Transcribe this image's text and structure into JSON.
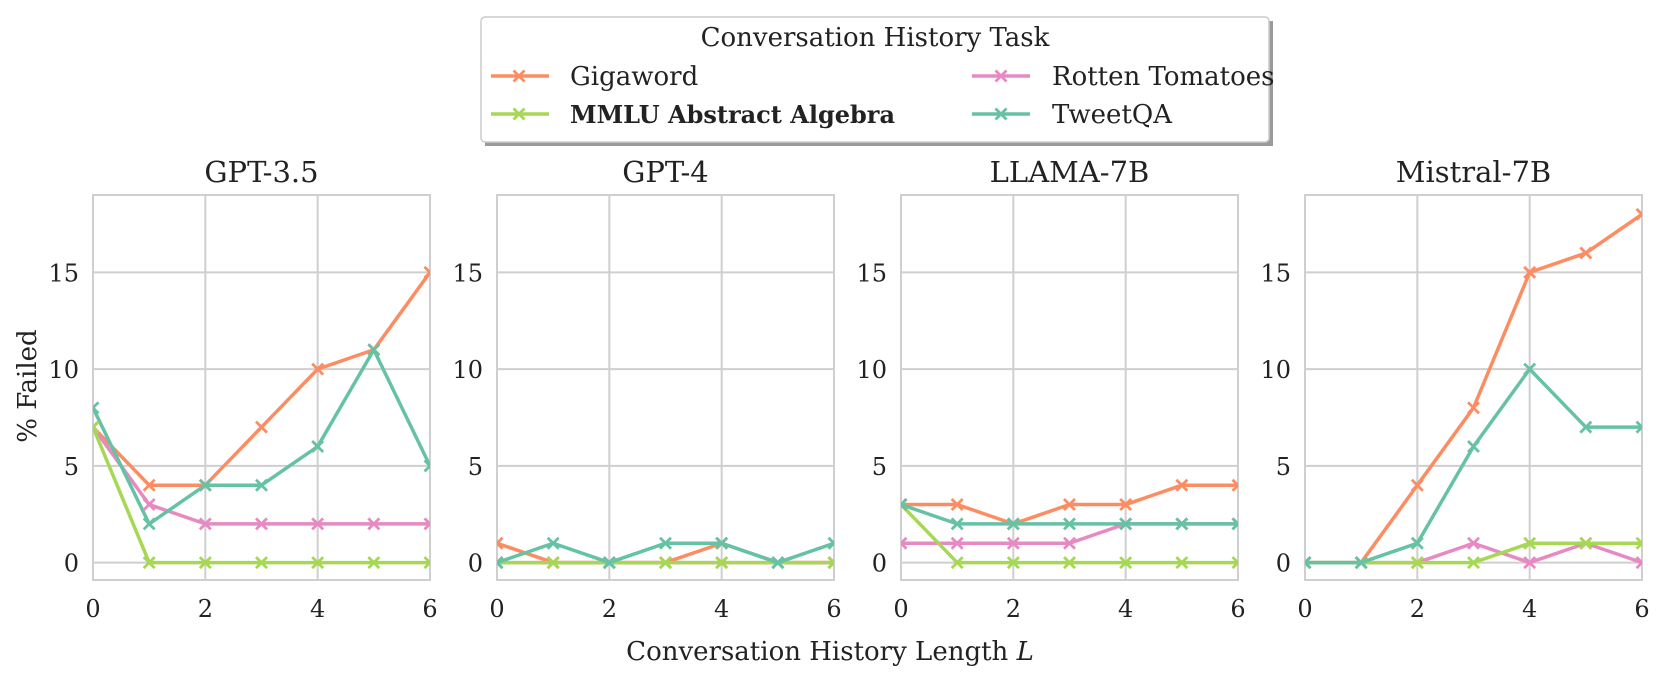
{
  "chart_data": {
    "type": "line",
    "legend": {
      "title": "Conversation History Task",
      "position": "top-center",
      "entries": [
        {
          "name": "Gigaword",
          "color": "#fc8d62",
          "bold": false
        },
        {
          "name": "Rotten Tomatoes",
          "color": "#e78ac3",
          "bold": false
        },
        {
          "name": "MMLU Abstract Algebra",
          "color": "#a6d854",
          "bold": true
        },
        {
          "name": "TweetQA",
          "color": "#66c2a5",
          "bold": false
        }
      ]
    },
    "xlabel_prefix": "Conversation History Length",
    "xlabel_var": "L",
    "ylabel": "% Failed",
    "x": [
      0,
      1,
      2,
      3,
      4,
      5,
      6
    ],
    "xlim": [
      0,
      6
    ],
    "ylim": [
      -0.9,
      19
    ],
    "xticks": [
      0,
      2,
      4,
      6
    ],
    "yticks": [
      0,
      5,
      10,
      15
    ],
    "grid": true,
    "panels": [
      {
        "title": "GPT-3.5",
        "series": [
          {
            "name": "Gigaword",
            "values": [
              7,
              4,
              4,
              7,
              10,
              11,
              15
            ]
          },
          {
            "name": "Rotten Tomatoes",
            "values": [
              7,
              3,
              2,
              2,
              2,
              2,
              2
            ]
          },
          {
            "name": "MMLU Abstract Algebra",
            "values": [
              7,
              0,
              0,
              0,
              0,
              0,
              0
            ]
          },
          {
            "name": "TweetQA",
            "values": [
              8,
              2,
              4,
              4,
              6,
              11,
              5
            ]
          }
        ]
      },
      {
        "title": "GPT-4",
        "series": [
          {
            "name": "Gigaword",
            "values": [
              1,
              0,
              0,
              0,
              1,
              0,
              0
            ]
          },
          {
            "name": "Rotten Tomatoes",
            "values": [
              0,
              0,
              0,
              0,
              0,
              0,
              0
            ]
          },
          {
            "name": "MMLU Abstract Algebra",
            "values": [
              0,
              0,
              0,
              0,
              0,
              0,
              0
            ]
          },
          {
            "name": "TweetQA",
            "values": [
              0,
              1,
              0,
              1,
              1,
              0,
              1
            ]
          }
        ]
      },
      {
        "title": "LLAMA-7B",
        "series": [
          {
            "name": "Gigaword",
            "values": [
              3,
              3,
              2,
              3,
              3,
              4,
              4
            ]
          },
          {
            "name": "Rotten Tomatoes",
            "values": [
              1,
              1,
              1,
              1,
              2,
              2,
              2
            ]
          },
          {
            "name": "MMLU Abstract Algebra",
            "values": [
              3,
              0,
              0,
              0,
              0,
              0,
              0
            ]
          },
          {
            "name": "TweetQA",
            "values": [
              3,
              2,
              2,
              2,
              2,
              2,
              2
            ]
          }
        ]
      },
      {
        "title": "Mistral-7B",
        "series": [
          {
            "name": "Gigaword",
            "values": [
              0,
              0,
              4,
              8,
              15,
              16,
              18
            ]
          },
          {
            "name": "Rotten Tomatoes",
            "values": [
              0,
              0,
              0,
              1,
              0,
              1,
              0
            ]
          },
          {
            "name": "MMLU Abstract Algebra",
            "values": [
              0,
              0,
              0,
              0,
              1,
              1,
              1
            ]
          },
          {
            "name": "TweetQA",
            "values": [
              0,
              0,
              1,
              6,
              10,
              7,
              7
            ]
          }
        ]
      }
    ]
  }
}
